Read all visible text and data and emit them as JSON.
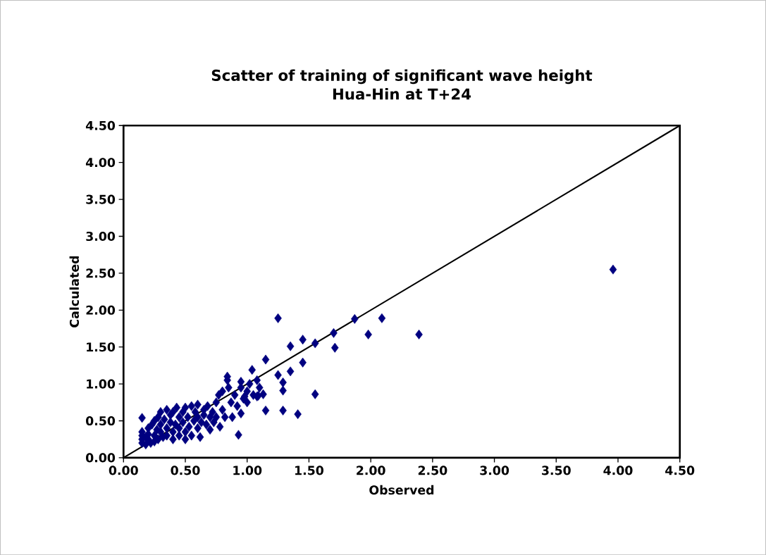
{
  "chart_data": {
    "type": "scatter",
    "title": "Scatter of training of significant wave height\nHua-Hin  at T+24",
    "xlabel": "Observed",
    "ylabel": "Calculated",
    "xlim": [
      0,
      4.5
    ],
    "ylim": [
      0,
      4.5
    ],
    "xticks": [
      {
        "value": 0,
        "label": "0.00"
      },
      {
        "value": 0.5,
        "label": "0.50"
      },
      {
        "value": 1,
        "label": "1.00"
      },
      {
        "value": 1.5,
        "label": "1.50"
      },
      {
        "value": 2,
        "label": "2.00"
      },
      {
        "value": 2.5,
        "label": "2.50"
      },
      {
        "value": 3,
        "label": "3.00"
      },
      {
        "value": 3.5,
        "label": "3.50"
      },
      {
        "value": 4,
        "label": "4.00"
      },
      {
        "value": 4.5,
        "label": "4.50"
      }
    ],
    "yticks": [
      {
        "value": 0,
        "label": "0.00"
      },
      {
        "value": 0.5,
        "label": "0.50"
      },
      {
        "value": 1,
        "label": "1.00"
      },
      {
        "value": 1.5,
        "label": "1.50"
      },
      {
        "value": 2,
        "label": "2.00"
      },
      {
        "value": 2.5,
        "label": "2.50"
      },
      {
        "value": 3,
        "label": "3.00"
      },
      {
        "value": 3.5,
        "label": "3.50"
      },
      {
        "value": 4,
        "label": "4.00"
      },
      {
        "value": 4.5,
        "label": "4.50"
      }
    ],
    "series": [
      {
        "color": "#000080",
        "marker": "diamond",
        "x": [
          0.15,
          0.15,
          0.15,
          0.15,
          0.18,
          0.18,
          0.2,
          0.2,
          0.2,
          0.22,
          0.23,
          0.25,
          0.25,
          0.25,
          0.27,
          0.28,
          0.28,
          0.3,
          0.3,
          0.3,
          0.32,
          0.33,
          0.35,
          0.35,
          0.35,
          0.38,
          0.38,
          0.4,
          0.4,
          0.4,
          0.42,
          0.43,
          0.45,
          0.45,
          0.45,
          0.48,
          0.48,
          0.5,
          0.5,
          0.5,
          0.52,
          0.53,
          0.55,
          0.55,
          0.57,
          0.58,
          0.6,
          0.6,
          0.6,
          0.62,
          0.63,
          0.65,
          0.65,
          0.67,
          0.68,
          0.7,
          0.7,
          0.72,
          0.73,
          0.75,
          0.75,
          0.77,
          0.78,
          0.8,
          0.8,
          0.82,
          0.84,
          0.85,
          0.87,
          0.88,
          0.9,
          0.92,
          0.95,
          0.95,
          0.97,
          1.0,
          1.0,
          1.02,
          1.05,
          1.08,
          1.1,
          0.84,
          0.95,
          0.15,
          1.09,
          0.98,
          1.25,
          1.45,
          1.55,
          1.7,
          1.87,
          2.09,
          1.98,
          2.39,
          3.96,
          1.71,
          1.35,
          1.15,
          1.45,
          1.35,
          1.25,
          1.29,
          1.29,
          1.55,
          1.15,
          1.29,
          1.41,
          0.93,
          1.04,
          1.13,
          1.08
        ],
        "values": [
          0.2,
          0.25,
          0.3,
          0.35,
          0.28,
          0.18,
          0.32,
          0.4,
          0.25,
          0.2,
          0.45,
          0.3,
          0.5,
          0.22,
          0.38,
          0.55,
          0.25,
          0.62,
          0.35,
          0.45,
          0.28,
          0.52,
          0.65,
          0.4,
          0.3,
          0.58,
          0.48,
          0.35,
          0.25,
          0.62,
          0.45,
          0.68,
          0.3,
          0.55,
          0.4,
          0.62,
          0.48,
          0.35,
          0.25,
          0.68,
          0.55,
          0.42,
          0.7,
          0.3,
          0.5,
          0.62,
          0.4,
          0.72,
          0.55,
          0.28,
          0.48,
          0.65,
          0.58,
          0.45,
          0.7,
          0.55,
          0.38,
          0.62,
          0.48,
          0.75,
          0.55,
          0.85,
          0.42,
          0.65,
          0.9,
          0.55,
          1.05,
          0.95,
          0.75,
          0.55,
          0.85,
          0.7,
          0.95,
          0.6,
          0.8,
          0.9,
          0.75,
          1.0,
          0.85,
          1.05,
          0.95,
          1.1,
          1.03,
          0.54,
          0.84,
          0.83,
          1.89,
          1.6,
          1.55,
          1.69,
          1.88,
          1.89,
          1.67,
          1.67,
          2.55,
          1.49,
          1.51,
          1.33,
          1.29,
          1.17,
          1.12,
          1.02,
          0.91,
          0.86,
          0.64,
          0.64,
          0.59,
          0.31,
          1.19,
          0.86,
          0.83
        ]
      },
      {
        "type": "line",
        "color": "#000000",
        "marker": "none",
        "x": [
          0,
          4.5
        ],
        "values": [
          0,
          4.5
        ]
      }
    ]
  }
}
